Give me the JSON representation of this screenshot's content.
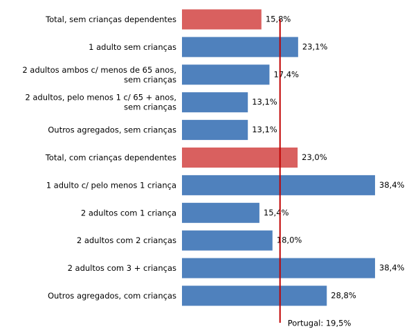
{
  "chart_data": {
    "type": "bar",
    "orientation": "horizontal",
    "categories": [
      [
        "Total, sem crianças dependentes"
      ],
      [
        "1 adulto sem crianças"
      ],
      [
        "2 adultos ambos c/ menos de 65 anos,",
        "sem crianças"
      ],
      [
        "2 adultos, pelo menos 1 c/ 65 + anos,",
        "sem crianças"
      ],
      [
        "Outros agregados, sem crianças"
      ],
      [
        "Total, com crianças dependentes"
      ],
      [
        "1 adulto c/ pelo menos 1 criança"
      ],
      [
        "2 adultos com 1 criança"
      ],
      [
        "2 adultos com 2 crianças"
      ],
      [
        "2 adultos com 3 + crianças"
      ],
      [
        "Outros agregados, com crianças"
      ]
    ],
    "values": [
      15.8,
      23.1,
      17.4,
      13.1,
      13.1,
      23.0,
      38.4,
      15.4,
      18.0,
      38.4,
      28.8
    ],
    "value_labels": [
      "15,8%",
      "23,1%",
      "17,4%",
      "13,1%",
      "13,1%",
      "23,0%",
      "38,4%",
      "15,4%",
      "18,0%",
      "38,4%",
      "28,8%"
    ],
    "colors": [
      "#d9605f",
      "#4f81bd",
      "#4f81bd",
      "#4f81bd",
      "#4f81bd",
      "#d9605f",
      "#4f81bd",
      "#4f81bd",
      "#4f81bd",
      "#4f81bd",
      "#4f81bd"
    ],
    "xlim": [
      0,
      45
    ],
    "reference_line": {
      "value": 19.5,
      "label": "Portugal: 19,5%",
      "color": "#c00000"
    }
  }
}
